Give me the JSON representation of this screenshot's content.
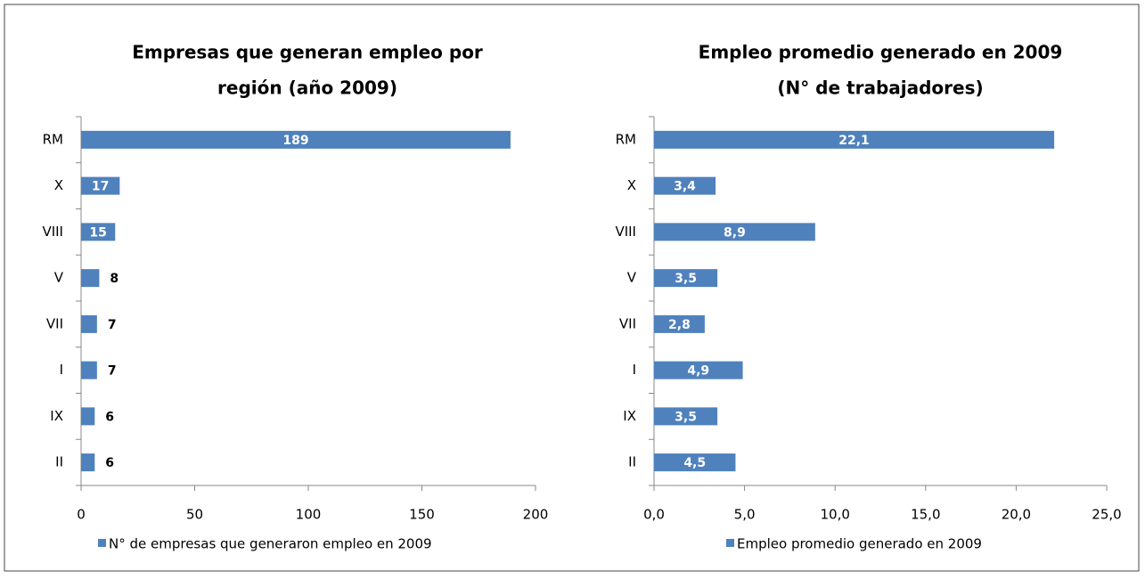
{
  "chart_data": [
    {
      "type": "hbar",
      "title": [
        "Empresas que generan empleo por",
        "región (año 2009)"
      ],
      "categories": [
        "RM",
        "X",
        "VIII",
        "V",
        "VII",
        "I",
        "IX",
        "II"
      ],
      "series": [
        {
          "name": "N° de empresas que generaron empleo en 2009",
          "color": "#4f81bd",
          "values": [
            189,
            17,
            15,
            8,
            7,
            7,
            6,
            6
          ]
        }
      ],
      "xlim": [
        0,
        200
      ],
      "xticks": [
        0,
        50,
        100,
        150,
        200
      ],
      "legend": "bottom"
    },
    {
      "type": "hbar",
      "title": [
        "Empleo promedio generado en 2009",
        "(N° de trabajadores)"
      ],
      "categories": [
        "RM",
        "X",
        "VIII",
        "V",
        "VII",
        "I",
        "IX",
        "II"
      ],
      "series": [
        {
          "name": "Empleo promedio generado en 2009",
          "color": "#4f81bd",
          "values": [
            22.1,
            3.4,
            8.9,
            3.5,
            2.8,
            4.9,
            3.5,
            4.5
          ],
          "value_labels": [
            "22,1",
            "3,4",
            "8,9",
            "3,5",
            "2,8",
            "4,9",
            "3,5",
            "4,5"
          ]
        }
      ],
      "xlim": [
        0,
        25
      ],
      "xticks": [
        {
          "value": 0,
          "label": "0,0"
        },
        {
          "value": 5,
          "label": "5,0"
        },
        {
          "value": 10,
          "label": "10,0"
        },
        {
          "value": 15,
          "label": "15,0"
        },
        {
          "value": 20,
          "label": "20,0"
        },
        {
          "value": 25,
          "label": "25,0"
        }
      ],
      "legend": "bottom"
    }
  ]
}
